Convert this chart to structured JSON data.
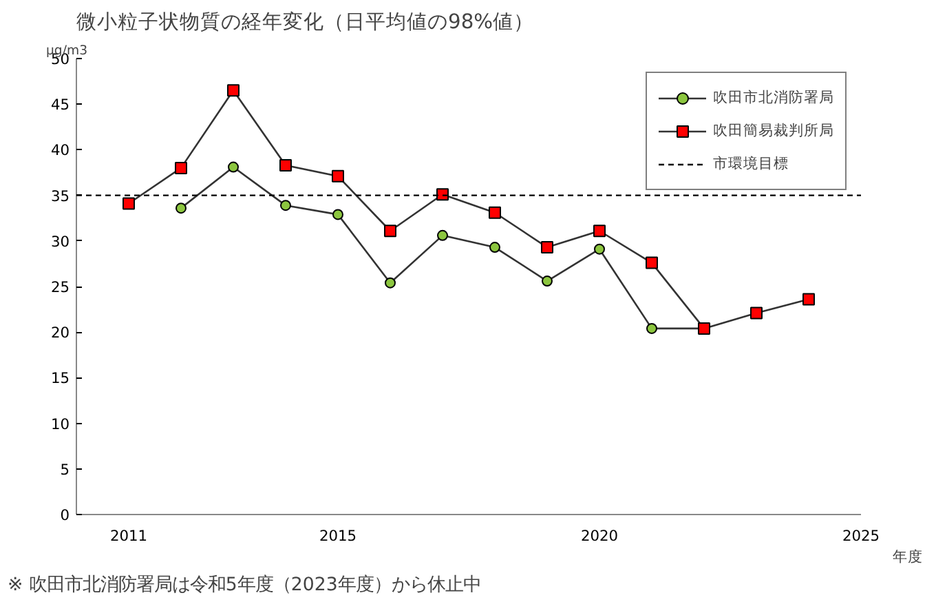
{
  "chart_data": {
    "type": "line",
    "title": "微小粒子状物質の経年変化（日平均値の98%値）",
    "ylabel": "μg/m3",
    "xlabel": "年度",
    "x": [
      2011,
      2012,
      2013,
      2014,
      2015,
      2016,
      2017,
      2018,
      2019,
      2020,
      2021,
      2022,
      2023,
      2024
    ],
    "series": [
      {
        "name": "吹田市北消防署局",
        "color": "#8cc63f",
        "marker": "circle",
        "values": [
          null,
          33.6,
          38.1,
          33.9,
          32.9,
          25.4,
          30.6,
          29.3,
          25.6,
          29.1,
          20.4,
          20.4,
          null,
          null
        ]
      },
      {
        "name": "吹田簡易裁判所局",
        "color": "#ff0000",
        "marker": "square",
        "values": [
          34.1,
          38.0,
          46.5,
          38.3,
          37.1,
          31.1,
          35.1,
          33.1,
          29.3,
          31.1,
          27.6,
          20.4,
          22.1,
          23.6
        ]
      }
    ],
    "ref_lines": [
      {
        "axis": "y",
        "value": 35,
        "label": "市環境目標",
        "color": "#000000",
        "line_style": "dashed"
      }
    ],
    "xlim": [
      2010,
      2025
    ],
    "xticks": [
      2011,
      2015,
      2020,
      2025
    ],
    "ylim": [
      0,
      50
    ],
    "yticks": [
      0,
      5,
      10,
      15,
      20,
      25,
      30,
      35,
      40,
      45,
      50
    ],
    "grid": false,
    "legend": "top right",
    "annotations": [
      "※ 吹田市北消防署局は令和5年度（2023年度）から休止中"
    ]
  }
}
